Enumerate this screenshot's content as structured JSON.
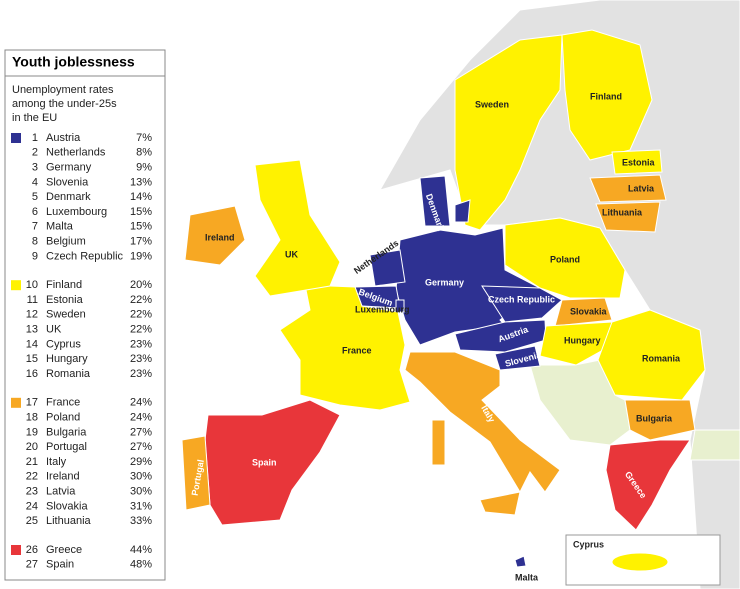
{
  "legend": {
    "title": "Youth joblessness",
    "subtitle": [
      "Unemployment rates",
      "among the under-25s",
      "in the EU"
    ],
    "groups": [
      {
        "color": "#2e3192",
        "rows": [
          {
            "rank": "1",
            "country": "Austria",
            "rate": "7%"
          },
          {
            "rank": "2",
            "country": "Netherlands",
            "rate": "8%"
          },
          {
            "rank": "3",
            "country": "Germany",
            "rate": "9%"
          },
          {
            "rank": "4",
            "country": "Slovenia",
            "rate": "13%"
          },
          {
            "rank": "5",
            "country": "Denmark",
            "rate": "14%"
          },
          {
            "rank": "6",
            "country": "Luxembourg",
            "rate": "15%"
          },
          {
            "rank": "7",
            "country": "Malta",
            "rate": "15%"
          },
          {
            "rank": "8",
            "country": "Belgium",
            "rate": "17%"
          },
          {
            "rank": "9",
            "country": "Czech Republic",
            "rate": "19%"
          }
        ]
      },
      {
        "color": "#fff200",
        "rows": [
          {
            "rank": "10",
            "country": "Finland",
            "rate": "20%"
          },
          {
            "rank": "11",
            "country": "Estonia",
            "rate": "22%"
          },
          {
            "rank": "12",
            "country": "Sweden",
            "rate": "22%"
          },
          {
            "rank": "13",
            "country": "UK",
            "rate": "22%"
          },
          {
            "rank": "14",
            "country": "Cyprus",
            "rate": "23%"
          },
          {
            "rank": "15",
            "country": "Hungary",
            "rate": "23%"
          },
          {
            "rank": "16",
            "country": "Romania",
            "rate": "23%"
          }
        ]
      },
      {
        "color": "#f7a823",
        "rows": [
          {
            "rank": "17",
            "country": "France",
            "rate": "24%"
          },
          {
            "rank": "18",
            "country": "Poland",
            "rate": "24%"
          },
          {
            "rank": "19",
            "country": "Bulgaria",
            "rate": "27%"
          },
          {
            "rank": "20",
            "country": "Portugal",
            "rate": "27%"
          },
          {
            "rank": "21",
            "country": "Italy",
            "rate": "29%"
          },
          {
            "rank": "22",
            "country": "Ireland",
            "rate": "30%"
          },
          {
            "rank": "23",
            "country": "Latvia",
            "rate": "30%"
          },
          {
            "rank": "24",
            "country": "Slovakia",
            "rate": "31%"
          },
          {
            "rank": "25",
            "country": "Lithuania",
            "rate": "33%"
          }
        ]
      },
      {
        "color": "#e8363a",
        "rows": [
          {
            "rank": "26",
            "country": "Greece",
            "rate": "44%"
          },
          {
            "rank": "27",
            "country": "Spain",
            "rate": "48%"
          }
        ]
      }
    ]
  },
  "map_labels": [
    "Sweden",
    "Finland",
    "Estonia",
    "Latvia",
    "Lithuania",
    "Poland",
    "Denmark",
    "Netherlands",
    "Belgium",
    "Germany",
    "Czech Republic",
    "Luxembourg",
    "France",
    "Slovakia",
    "Austria",
    "Hungary",
    "Slovenia",
    "Romania",
    "Bulgaria",
    "Italy",
    "Spain",
    "Portugal",
    "Greece",
    "Ireland",
    "UK",
    "Malta",
    "Cyprus"
  ]
}
